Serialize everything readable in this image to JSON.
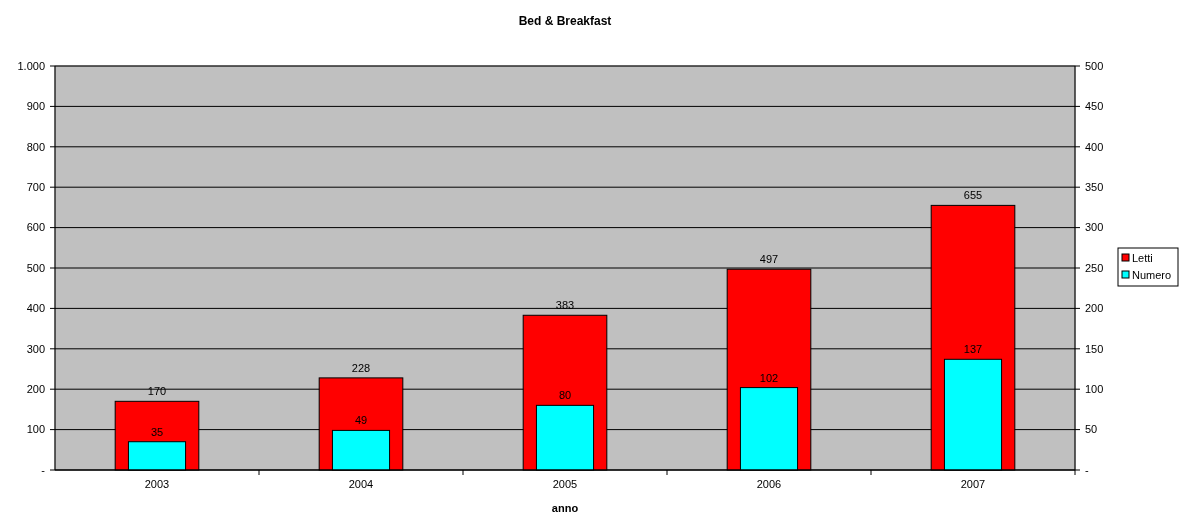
{
  "chart_data": {
    "type": "bar",
    "title": "Bed & Breakfast",
    "xlabel": "anno",
    "categories": [
      "2003",
      "2004",
      "2005",
      "2006",
      "2007"
    ],
    "series": [
      {
        "name": "Letti",
        "color": "#ff0000",
        "values": [
          170,
          228,
          383,
          497,
          655
        ]
      },
      {
        "name": "Numero",
        "color": "#00ffff",
        "values": [
          35,
          49,
          80,
          102,
          137
        ],
        "axis": "y2"
      }
    ],
    "ylim": [
      0,
      1000
    ],
    "yticks": [
      {
        "value": 0,
        "label": "-"
      },
      100,
      200,
      300,
      400,
      500,
      600,
      700,
      800,
      900,
      {
        "value": 1000,
        "label": "1.000"
      }
    ],
    "y2lim": [
      0,
      500
    ],
    "y2ticks": [
      {
        "value": 0,
        "label": "-"
      },
      50,
      100,
      150,
      200,
      250,
      300,
      350,
      400,
      450,
      500
    ],
    "grid": "y",
    "legend": "right",
    "data_labels": true
  }
}
